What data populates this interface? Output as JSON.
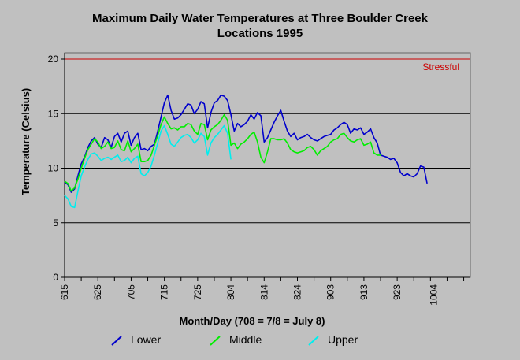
{
  "chart_data": {
    "type": "line",
    "title": "Maximum Daily Water Temperatures at Three Boulder Creek Locations 1995",
    "title_lines": [
      "Maximum Daily Water Temperatures at Three Boulder Creek",
      "Locations 1995"
    ],
    "xlabel": "Month/Day (708 = 7/8 = July 8)",
    "ylabel": "Temperature (Celsius)",
    "ylim": [
      0,
      20
    ],
    "yticks": [
      0,
      5,
      10,
      15,
      20
    ],
    "xlim": [
      "6/15",
      "10/15"
    ],
    "xticks": [
      {
        "label": "615",
        "date": "6/15"
      },
      {
        "label": "625",
        "date": "6/25"
      },
      {
        "label": "705",
        "date": "7/05"
      },
      {
        "label": "715",
        "date": "7/15"
      },
      {
        "label": "725",
        "date": "7/25"
      },
      {
        "label": "804",
        "date": "8/04"
      },
      {
        "label": "814",
        "date": "8/14"
      },
      {
        "label": "824",
        "date": "8/24"
      },
      {
        "label": "903",
        "date": "9/03"
      },
      {
        "label": "913",
        "date": "9/13"
      },
      {
        "label": "923",
        "date": "9/23"
      },
      {
        "label": "1004",
        "date": "10/04"
      }
    ],
    "grid": "horizontal",
    "legend_position": "bottom",
    "threshold": {
      "value": 20,
      "label": "Stressful",
      "color": "#cc0000"
    },
    "series": [
      {
        "name": "Lower",
        "color": "#0000cc",
        "points": [
          [
            "6/15",
            8.7
          ],
          [
            "6/16",
            8.5
          ],
          [
            "6/17",
            7.8
          ],
          [
            "6/18",
            8.1
          ],
          [
            "6/19",
            9.3
          ],
          [
            "6/20",
            10.4
          ],
          [
            "6/21",
            11.0
          ],
          [
            "6/22",
            11.9
          ],
          [
            "6/23",
            12.5
          ],
          [
            "6/24",
            12.8
          ],
          [
            "6/25",
            12.2
          ],
          [
            "6/26",
            11.9
          ],
          [
            "6/27",
            12.8
          ],
          [
            "6/28",
            12.6
          ],
          [
            "6/29",
            11.9
          ],
          [
            "6/30",
            12.9
          ],
          [
            "7/01",
            13.2
          ],
          [
            "7/02",
            12.4
          ],
          [
            "7/03",
            13.2
          ],
          [
            "7/04",
            13.4
          ],
          [
            "7/05",
            12.1
          ],
          [
            "7/06",
            12.8
          ],
          [
            "7/07",
            13.2
          ],
          [
            "7/08",
            11.7
          ],
          [
            "7/09",
            11.8
          ],
          [
            "7/10",
            11.6
          ],
          [
            "7/11",
            12.0
          ],
          [
            "7/12",
            12.2
          ],
          [
            "7/13",
            13.4
          ],
          [
            "7/14",
            14.7
          ],
          [
            "7/15",
            16.0
          ],
          [
            "7/16",
            16.7
          ],
          [
            "7/17",
            15.3
          ],
          [
            "7/18",
            14.5
          ],
          [
            "7/19",
            14.6
          ],
          [
            "7/20",
            14.9
          ],
          [
            "7/21",
            15.4
          ],
          [
            "7/22",
            15.9
          ],
          [
            "7/23",
            15.8
          ],
          [
            "7/24",
            15.0
          ],
          [
            "7/25",
            15.4
          ],
          [
            "7/26",
            16.1
          ],
          [
            "7/27",
            15.9
          ],
          [
            "7/28",
            13.7
          ],
          [
            "7/29",
            15.1
          ],
          [
            "7/30",
            16.0
          ],
          [
            "7/31",
            16.2
          ],
          [
            "8/01",
            16.7
          ],
          [
            "8/02",
            16.6
          ],
          [
            "8/03",
            16.2
          ],
          [
            "8/04",
            14.9
          ],
          [
            "8/05",
            13.4
          ],
          [
            "8/06",
            14.1
          ],
          [
            "8/07",
            13.8
          ],
          [
            "8/08",
            14.0
          ],
          [
            "8/09",
            14.3
          ],
          [
            "8/10",
            14.9
          ],
          [
            "8/11",
            14.5
          ],
          [
            "8/12",
            15.1
          ],
          [
            "8/13",
            14.8
          ],
          [
            "8/14",
            12.4
          ],
          [
            "8/15",
            12.8
          ],
          [
            "8/16",
            13.5
          ],
          [
            "8/17",
            14.2
          ],
          [
            "8/18",
            14.8
          ],
          [
            "8/19",
            15.3
          ],
          [
            "8/20",
            14.3
          ],
          [
            "8/21",
            13.4
          ],
          [
            "8/22",
            12.9
          ],
          [
            "8/23",
            13.2
          ],
          [
            "8/24",
            12.6
          ],
          [
            "8/25",
            12.8
          ],
          [
            "8/26",
            12.9
          ],
          [
            "8/27",
            13.1
          ],
          [
            "8/28",
            12.8
          ],
          [
            "8/29",
            12.6
          ],
          [
            "8/30",
            12.5
          ],
          [
            "8/31",
            12.7
          ],
          [
            "9/01",
            12.9
          ],
          [
            "9/02",
            13.0
          ],
          [
            "9/03",
            13.1
          ],
          [
            "9/04",
            13.5
          ],
          [
            "9/05",
            13.7
          ],
          [
            "9/06",
            14.0
          ],
          [
            "9/07",
            14.2
          ],
          [
            "9/08",
            14.0
          ],
          [
            "9/09",
            13.2
          ],
          [
            "9/10",
            13.6
          ],
          [
            "9/11",
            13.5
          ],
          [
            "9/12",
            13.7
          ],
          [
            "9/13",
            13.1
          ],
          [
            "9/14",
            13.3
          ],
          [
            "9/15",
            13.6
          ],
          [
            "9/16",
            12.8
          ],
          [
            "9/17",
            12.3
          ],
          [
            "9/18",
            11.2
          ],
          [
            "9/19",
            11.1
          ],
          [
            "9/20",
            11.0
          ],
          [
            "9/21",
            10.8
          ],
          [
            "9/22",
            10.9
          ],
          [
            "9/23",
            10.5
          ],
          [
            "9/24",
            9.6
          ],
          [
            "9/25",
            9.3
          ],
          [
            "9/26",
            9.5
          ],
          [
            "9/27",
            9.3
          ],
          [
            "9/28",
            9.2
          ],
          [
            "9/29",
            9.5
          ],
          [
            "9/30",
            10.2
          ],
          [
            "10/01",
            10.1
          ],
          [
            "10/02",
            8.6
          ]
        ]
      },
      {
        "name": "Middle",
        "color": "#00ee00",
        "points": [
          [
            "6/15",
            8.8
          ],
          [
            "6/16",
            8.6
          ],
          [
            "6/17",
            7.9
          ],
          [
            "6/18",
            8.2
          ],
          [
            "6/19",
            9.0
          ],
          [
            "6/20",
            10.0
          ],
          [
            "6/21",
            10.9
          ],
          [
            "6/22",
            11.7
          ],
          [
            "6/23",
            12.2
          ],
          [
            "6/24",
            12.7
          ],
          [
            "6/25",
            12.4
          ],
          [
            "6/26",
            11.8
          ],
          [
            "6/27",
            12.0
          ],
          [
            "6/28",
            12.4
          ],
          [
            "6/29",
            11.8
          ],
          [
            "6/30",
            11.9
          ],
          [
            "7/01",
            12.5
          ],
          [
            "7/02",
            11.7
          ],
          [
            "7/03",
            11.6
          ],
          [
            "7/04",
            12.5
          ],
          [
            "7/05",
            11.5
          ],
          [
            "7/06",
            11.8
          ],
          [
            "7/07",
            12.2
          ],
          [
            "7/08",
            10.6
          ],
          [
            "7/09",
            10.6
          ],
          [
            "7/10",
            10.7
          ],
          [
            "7/11",
            11.2
          ],
          [
            "7/12",
            12.1
          ],
          [
            "7/13",
            13.0
          ],
          [
            "7/14",
            14.0
          ],
          [
            "7/15",
            14.7
          ],
          [
            "7/16",
            14.1
          ],
          [
            "7/17",
            13.6
          ],
          [
            "7/18",
            13.7
          ],
          [
            "7/19",
            13.5
          ],
          [
            "7/20",
            13.8
          ],
          [
            "7/21",
            13.8
          ],
          [
            "7/22",
            14.1
          ],
          [
            "7/23",
            14.0
          ],
          [
            "7/24",
            13.4
          ],
          [
            "7/25",
            13.1
          ],
          [
            "7/26",
            14.1
          ],
          [
            "7/27",
            14.0
          ],
          [
            "7/28",
            12.6
          ],
          [
            "7/29",
            13.5
          ],
          [
            "7/30",
            13.8
          ],
          [
            "7/31",
            14.0
          ],
          [
            "8/01",
            14.4
          ],
          [
            "8/02",
            14.9
          ],
          [
            "8/03",
            14.4
          ],
          [
            "8/04",
            12.1
          ],
          [
            "8/05",
            12.3
          ],
          [
            "8/06",
            11.8
          ],
          [
            "8/07",
            12.2
          ],
          [
            "8/08",
            12.4
          ],
          [
            "8/09",
            12.7
          ],
          [
            "8/10",
            13.1
          ],
          [
            "8/11",
            13.3
          ],
          [
            "8/12",
            12.4
          ],
          [
            "8/13",
            11.0
          ],
          [
            "8/14",
            10.5
          ],
          [
            "8/15",
            11.5
          ],
          [
            "8/16",
            12.7
          ],
          [
            "8/17",
            12.7
          ],
          [
            "8/18",
            12.6
          ],
          [
            "8/19",
            12.6
          ],
          [
            "8/20",
            12.7
          ],
          [
            "8/21",
            12.3
          ],
          [
            "8/22",
            11.7
          ],
          [
            "8/23",
            11.5
          ],
          [
            "8/24",
            11.4
          ],
          [
            "8/25",
            11.5
          ],
          [
            "8/26",
            11.6
          ],
          [
            "8/27",
            11.9
          ],
          [
            "8/28",
            12.0
          ],
          [
            "8/29",
            11.7
          ],
          [
            "8/30",
            11.2
          ],
          [
            "8/31",
            11.6
          ],
          [
            "9/01",
            11.8
          ],
          [
            "9/02",
            12.0
          ],
          [
            "9/03",
            12.4
          ],
          [
            "9/04",
            12.6
          ],
          [
            "9/05",
            12.7
          ],
          [
            "9/06",
            13.1
          ],
          [
            "9/07",
            13.2
          ],
          [
            "9/08",
            12.8
          ],
          [
            "9/09",
            12.5
          ],
          [
            "9/10",
            12.4
          ],
          [
            "9/11",
            12.6
          ],
          [
            "9/12",
            12.7
          ],
          [
            "9/13",
            12.1
          ],
          [
            "9/14",
            12.2
          ],
          [
            "9/15",
            12.4
          ],
          [
            "9/16",
            11.4
          ],
          [
            "9/17",
            11.2
          ],
          [
            "9/18",
            11.2
          ]
        ]
      },
      {
        "name": "Upper",
        "color": "#00eeee",
        "points": [
          [
            "6/15",
            7.5
          ],
          [
            "6/16",
            7.2
          ],
          [
            "6/17",
            6.5
          ],
          [
            "6/18",
            6.4
          ],
          [
            "6/19",
            7.9
          ],
          [
            "6/20",
            9.3
          ],
          [
            "6/21",
            10.1
          ],
          [
            "6/22",
            10.8
          ],
          [
            "6/23",
            11.3
          ],
          [
            "6/24",
            11.4
          ],
          [
            "6/25",
            11.1
          ],
          [
            "6/26",
            10.7
          ],
          [
            "6/27",
            10.9
          ],
          [
            "6/28",
            11.0
          ],
          [
            "6/29",
            10.8
          ],
          [
            "6/30",
            11.0
          ],
          [
            "7/01",
            11.2
          ],
          [
            "7/02",
            10.6
          ],
          [
            "7/03",
            10.7
          ],
          [
            "7/04",
            11.0
          ],
          [
            "7/05",
            10.5
          ],
          [
            "7/06",
            10.9
          ],
          [
            "7/07",
            11.1
          ],
          [
            "7/08",
            9.5
          ],
          [
            "7/09",
            9.3
          ],
          [
            "7/10",
            9.6
          ],
          [
            "7/11",
            10.2
          ],
          [
            "7/12",
            11.2
          ],
          [
            "7/13",
            12.3
          ],
          [
            "7/14",
            13.4
          ],
          [
            "7/15",
            13.9
          ],
          [
            "7/16",
            13.1
          ],
          [
            "7/17",
            12.2
          ],
          [
            "7/18",
            12.0
          ],
          [
            "7/19",
            12.4
          ],
          [
            "7/20",
            12.8
          ],
          [
            "7/21",
            13.0
          ],
          [
            "7/22",
            13.1
          ],
          [
            "7/23",
            12.8
          ],
          [
            "7/24",
            12.3
          ],
          [
            "7/25",
            12.6
          ],
          [
            "7/26",
            13.2
          ],
          [
            "7/27",
            12.9
          ],
          [
            "7/28",
            11.2
          ],
          [
            "7/29",
            12.3
          ],
          [
            "7/30",
            12.8
          ],
          [
            "7/31",
            13.1
          ],
          [
            "8/01",
            13.5
          ],
          [
            "8/02",
            13.9
          ],
          [
            "8/03",
            13.2
          ],
          [
            "8/04",
            10.8
          ]
        ]
      }
    ]
  }
}
